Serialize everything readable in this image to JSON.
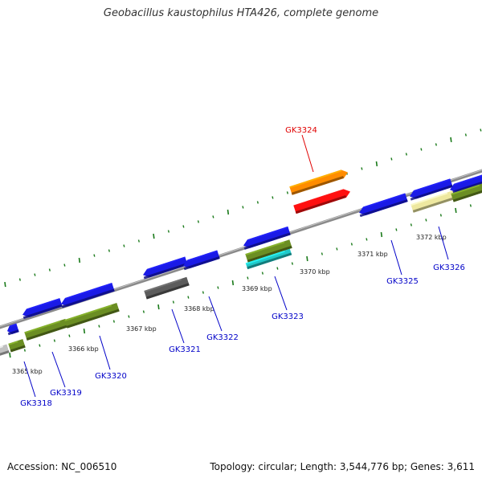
{
  "title": "Geobacillus kaustophilus HTA426, complete genome",
  "footer": {
    "accession": "Accession: NC_006510",
    "summary": "Topology: circular; Length: 3,544,776 bp; Genes: 3,611"
  },
  "colors": {
    "backbone": "#8a8a8a",
    "ticks": "#1a7a1a",
    "label_default": "#0000c8",
    "label_highlight": "#e00000"
  },
  "kbp_labels": [
    "3365 kbp",
    "3366 kbp",
    "3367 kbp",
    "3368 kbp",
    "3369 kbp",
    "3370 kbp",
    "3371 kbp",
    "3372 kbp"
  ],
  "gene_labels": [
    {
      "id": "GK3318",
      "color": "#0000c8"
    },
    {
      "id": "GK3319",
      "color": "#0000c8"
    },
    {
      "id": "GK3320",
      "color": "#0000c8"
    },
    {
      "id": "GK3321",
      "color": "#0000c8"
    },
    {
      "id": "GK3322",
      "color": "#0000c8"
    },
    {
      "id": "GK3323",
      "color": "#0000c8"
    },
    {
      "id": "GK3324",
      "color": "#e00000"
    },
    {
      "id": "GK3325",
      "color": "#0000c8"
    },
    {
      "id": "GK3326",
      "color": "#0000c8"
    }
  ]
}
